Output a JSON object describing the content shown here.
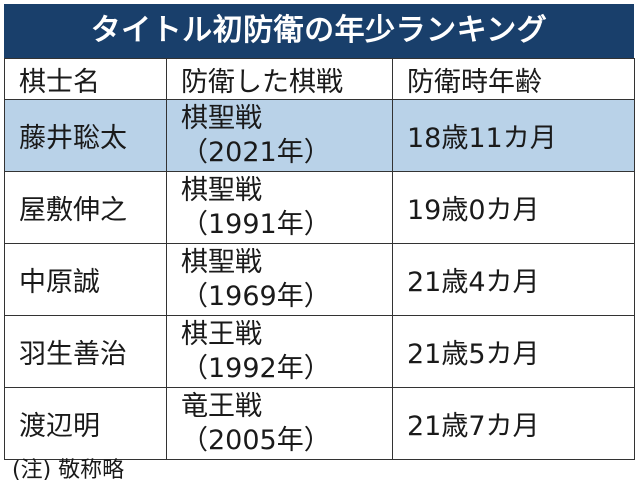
{
  "title": "タイトル初防衛の年少ランキング",
  "headers": [
    "棋士名",
    "防衛した棋戦",
    "防衛時年齢"
  ],
  "rows": [
    {
      "name": "藤井聡太",
      "title": "棋聖戦",
      "year": "（2021年）",
      "age": "18歳11カ月",
      "highlight": true
    },
    {
      "name": "屋敷伸之",
      "title": "棋聖戦",
      "year": "（1991年）",
      "age": "19歳0カ月",
      "highlight": false
    },
    {
      "name": "中原誠",
      "title": "棋聖戦",
      "year": "（1969年）",
      "age": "21歳4カ月",
      "highlight": false
    },
    {
      "name": "羽生善治",
      "title": "棋王戦",
      "year": "（1992年）",
      "age": "21歳5カ月",
      "highlight": false
    },
    {
      "name": "渡辺明",
      "title": "竜王戦",
      "year": "（2005年）",
      "age": "21歳7カ月",
      "highlight": false
    }
  ],
  "note": "(注) 敬称略",
  "colors": {
    "banner": "#193f6b",
    "highlight_row": "#b9d2e8"
  }
}
